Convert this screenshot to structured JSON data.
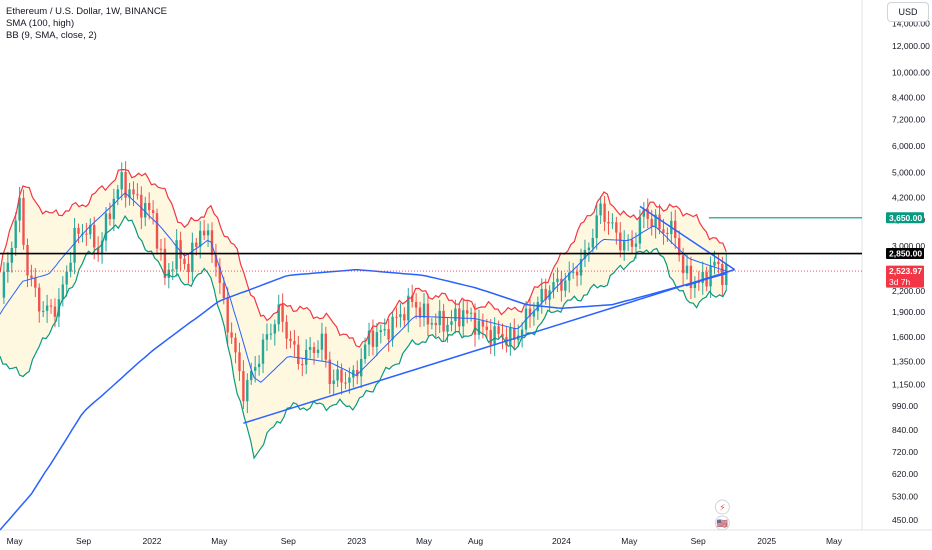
{
  "legend": {
    "title": "Ethereum / U.S. Dollar, 1W, BINANCE",
    "sma": "SMA (100, high)",
    "bb": "BB (9, SMA, close, 2)"
  },
  "currency_button": "USD",
  "colors": {
    "up": "#26a69a",
    "down": "#ef5350",
    "sma": "#2962ff",
    "bb_upper": "#f23645",
    "bb_lower": "#089981",
    "bb_fill": "#fff8e1",
    "trendline": "#2962ff",
    "level_2850": "#000000",
    "level_3650": "#089981",
    "last_price": "#f23645"
  },
  "chart_data": {
    "type": "candlestick",
    "symbol": "ETHUSD",
    "timeframe": "1W",
    "exchange": "BINANCE",
    "y_scale": "log",
    "ylim": [
      420,
      16500
    ],
    "x_range": [
      "2021-04-05",
      "2025-06-20"
    ],
    "x_tick_labels": [
      {
        "date": "2021-05-01",
        "label": "May"
      },
      {
        "date": "2021-09-01",
        "label": "Sep"
      },
      {
        "date": "2022-01-01",
        "label": "2022"
      },
      {
        "date": "2022-05-01",
        "label": "May"
      },
      {
        "date": "2022-09-01",
        "label": "Sep"
      },
      {
        "date": "2023-01-01",
        "label": "2023"
      },
      {
        "date": "2023-05-01",
        "label": "May"
      },
      {
        "date": "2023-08-01",
        "label": "Aug"
      },
      {
        "date": "2024-01-01",
        "label": "2024"
      },
      {
        "date": "2024-05-01",
        "label": "May"
      },
      {
        "date": "2024-09-01",
        "label": "Sep"
      },
      {
        "date": "2025-01-01",
        "label": "2025"
      },
      {
        "date": "2025-05-01",
        "label": "May"
      }
    ],
    "y_tick_labels": [
      {
        "value": 14000,
        "label": "14,000.00"
      },
      {
        "value": 12000,
        "label": "12,000.00"
      },
      {
        "value": 10000,
        "label": "10,000.00"
      },
      {
        "value": 8400,
        "label": "8,400.00"
      },
      {
        "value": 7200,
        "label": "7,200.00"
      },
      {
        "value": 6000,
        "label": "6,000.00"
      },
      {
        "value": 5000,
        "label": "5,000.00"
      },
      {
        "value": 4200,
        "label": "4,200.00"
      },
      {
        "value": 3600,
        "label": "3,600.00"
      },
      {
        "value": 3000,
        "label": "3,000.00"
      },
      {
        "value": 2200,
        "label": "2,200.00"
      },
      {
        "value": 1900,
        "label": "1,900.00"
      },
      {
        "value": 1600,
        "label": "1,600.00"
      },
      {
        "value": 1350,
        "label": "1,350.00"
      },
      {
        "value": 1150,
        "label": "1,150.00"
      },
      {
        "value": 990,
        "label": "990.00"
      },
      {
        "value": 840,
        "label": "840.00"
      },
      {
        "value": 720,
        "label": "720.00"
      },
      {
        "value": 620,
        "label": "620.00"
      },
      {
        "value": 530,
        "label": "530.00"
      },
      {
        "value": 450,
        "label": "450.00"
      }
    ],
    "price_path": [
      {
        "date": "2021-04-05",
        "close": 2100
      },
      {
        "date": "2021-05-10",
        "close": 4000
      },
      {
        "date": "2021-05-24",
        "close": 2500
      },
      {
        "date": "2021-06-21",
        "close": 1900
      },
      {
        "date": "2021-07-19",
        "close": 2000
      },
      {
        "date": "2021-08-16",
        "close": 3200
      },
      {
        "date": "2021-09-06",
        "close": 3400
      },
      {
        "date": "2021-09-27",
        "close": 2900
      },
      {
        "date": "2021-10-25",
        "close": 4200
      },
      {
        "date": "2021-11-08",
        "close": 4700
      },
      {
        "date": "2021-12-06",
        "close": 4100
      },
      {
        "date": "2022-01-03",
        "close": 3700
      },
      {
        "date": "2022-01-24",
        "close": 2400
      },
      {
        "date": "2022-02-14",
        "close": 2900
      },
      {
        "date": "2022-03-07",
        "close": 2600
      },
      {
        "date": "2022-03-28",
        "close": 3400
      },
      {
        "date": "2022-04-18",
        "close": 3000
      },
      {
        "date": "2022-05-09",
        "close": 2000
      },
      {
        "date": "2022-06-13",
        "close": 1100
      },
      {
        "date": "2022-06-20",
        "close": 1150
      },
      {
        "date": "2022-07-25",
        "close": 1600
      },
      {
        "date": "2022-08-15",
        "close": 1900
      },
      {
        "date": "2022-09-19",
        "close": 1350
      },
      {
        "date": "2022-10-31",
        "close": 1550
      },
      {
        "date": "2022-11-14",
        "close": 1200
      },
      {
        "date": "2022-12-26",
        "close": 1200
      },
      {
        "date": "2023-01-23",
        "close": 1600
      },
      {
        "date": "2023-02-20",
        "close": 1650
      },
      {
        "date": "2023-04-10",
        "close": 2050
      },
      {
        "date": "2023-05-08",
        "close": 1800
      },
      {
        "date": "2023-06-12",
        "close": 1750
      },
      {
        "date": "2023-07-10",
        "close": 1900
      },
      {
        "date": "2023-08-21",
        "close": 1650
      },
      {
        "date": "2023-10-09",
        "close": 1580
      },
      {
        "date": "2023-11-06",
        "close": 1900
      },
      {
        "date": "2023-12-11",
        "close": 2250
      },
      {
        "date": "2024-01-15",
        "close": 2400
      },
      {
        "date": "2024-02-12",
        "close": 2800
      },
      {
        "date": "2024-03-11",
        "close": 3900
      },
      {
        "date": "2024-04-15",
        "close": 3100
      },
      {
        "date": "2024-05-06",
        "close": 3000
      },
      {
        "date": "2024-05-27",
        "close": 3800
      },
      {
        "date": "2024-06-24",
        "close": 3400
      },
      {
        "date": "2024-07-22",
        "close": 3300
      },
      {
        "date": "2024-08-05",
        "close": 2500
      },
      {
        "date": "2024-09-02",
        "close": 2300
      },
      {
        "date": "2024-09-30",
        "close": 2650
      },
      {
        "date": "2024-10-14",
        "close": 2500
      },
      {
        "date": "2024-10-21",
        "close": 2524
      }
    ],
    "sma_100_high": [
      {
        "date": "2021-04-05",
        "value": 420
      },
      {
        "date": "2021-06-01",
        "value": 540
      },
      {
        "date": "2021-09-01",
        "value": 950
      },
      {
        "date": "2022-01-01",
        "value": 1450
      },
      {
        "date": "2022-05-01",
        "value": 2050
      },
      {
        "date": "2022-09-01",
        "value": 2450
      },
      {
        "date": "2023-01-01",
        "value": 2550
      },
      {
        "date": "2023-05-01",
        "value": 2450
      },
      {
        "date": "2023-08-01",
        "value": 2250
      },
      {
        "date": "2023-11-01",
        "value": 2000
      },
      {
        "date": "2024-01-01",
        "value": 1950
      },
      {
        "date": "2024-04-01",
        "value": 2000
      },
      {
        "date": "2024-07-01",
        "value": 2200
      },
      {
        "date": "2024-10-21",
        "value": 2480
      }
    ],
    "bollinger_upper": [
      {
        "date": "2021-04-05",
        "value": 2500
      },
      {
        "date": "2021-05-15",
        "value": 4600
      },
      {
        "date": "2021-07-01",
        "value": 3700
      },
      {
        "date": "2021-09-01",
        "value": 4000
      },
      {
        "date": "2021-11-15",
        "value": 5100
      },
      {
        "date": "2022-01-15",
        "value": 4600
      },
      {
        "date": "2022-03-01",
        "value": 3400
      },
      {
        "date": "2022-04-15",
        "value": 3900
      },
      {
        "date": "2022-06-01",
        "value": 2900
      },
      {
        "date": "2022-07-15",
        "value": 1800
      },
      {
        "date": "2022-09-01",
        "value": 2000
      },
      {
        "date": "2022-11-15",
        "value": 1800
      },
      {
        "date": "2023-01-01",
        "value": 1500
      },
      {
        "date": "2023-04-15",
        "value": 2200
      },
      {
        "date": "2023-08-01",
        "value": 2000
      },
      {
        "date": "2023-10-15",
        "value": 1900
      },
      {
        "date": "2023-12-15",
        "value": 2500
      },
      {
        "date": "2024-03-15",
        "value": 4300
      },
      {
        "date": "2024-05-01",
        "value": 3600
      },
      {
        "date": "2024-06-15",
        "value": 4000
      },
      {
        "date": "2024-08-15",
        "value": 3800
      },
      {
        "date": "2024-10-21",
        "value": 2900
      }
    ],
    "bollinger_lower": [
      {
        "date": "2021-04-05",
        "value": 1400
      },
      {
        "date": "2021-05-15",
        "value": 1200
      },
      {
        "date": "2021-07-01",
        "value": 1650
      },
      {
        "date": "2021-09-01",
        "value": 2700
      },
      {
        "date": "2021-11-15",
        "value": 3700
      },
      {
        "date": "2022-01-15",
        "value": 2600
      },
      {
        "date": "2022-03-01",
        "value": 2300
      },
      {
        "date": "2022-04-15",
        "value": 2550
      },
      {
        "date": "2022-06-01",
        "value": 1150
      },
      {
        "date": "2022-07-01",
        "value": 700
      },
      {
        "date": "2022-09-01",
        "value": 980
      },
      {
        "date": "2022-11-15",
        "value": 1000
      },
      {
        "date": "2023-01-01",
        "value": 1000
      },
      {
        "date": "2023-04-15",
        "value": 1550
      },
      {
        "date": "2023-08-01",
        "value": 1650
      },
      {
        "date": "2023-10-15",
        "value": 1500
      },
      {
        "date": "2023-12-15",
        "value": 1900
      },
      {
        "date": "2024-03-15",
        "value": 2300
      },
      {
        "date": "2024-05-01",
        "value": 2700
      },
      {
        "date": "2024-06-15",
        "value": 3000
      },
      {
        "date": "2024-08-15",
        "value": 2000
      },
      {
        "date": "2024-10-21",
        "value": 2200
      }
    ],
    "horizontal_levels": [
      {
        "name": "level-2850",
        "value": 2850,
        "label": "2,850.00",
        "x_start": "2021-04-05",
        "x_end": "2025-06-20",
        "color": "#000000"
      },
      {
        "name": "level-3650",
        "value": 3650,
        "label": "3,650.00",
        "x_start": "2024-09-20",
        "x_end": "2025-06-20",
        "color": "#089981"
      }
    ],
    "trendlines": [
      {
        "name": "ascending-support",
        "points": [
          {
            "date": "2022-06-13",
            "value": 880
          },
          {
            "date": "2024-11-05",
            "value": 2550
          }
        ]
      },
      {
        "name": "descending-resistance",
        "points": [
          {
            "date": "2024-05-20",
            "value": 3950
          },
          {
            "date": "2024-11-05",
            "value": 2550
          }
        ]
      },
      {
        "name": "inner-support",
        "points": [
          {
            "date": "2024-08-10",
            "value": 2280
          },
          {
            "date": "2024-11-05",
            "value": 2550
          }
        ]
      }
    ],
    "last_price": {
      "value": 2523.97,
      "label": "2,523.97",
      "countdown": "3d 7h"
    },
    "markers": [
      {
        "name": "lightning-icon",
        "date": "2024-10-14",
        "symbol": "⚡"
      },
      {
        "name": "us-flag-icon",
        "date": "2024-10-14",
        "symbol": "🇺🇸"
      }
    ]
  }
}
